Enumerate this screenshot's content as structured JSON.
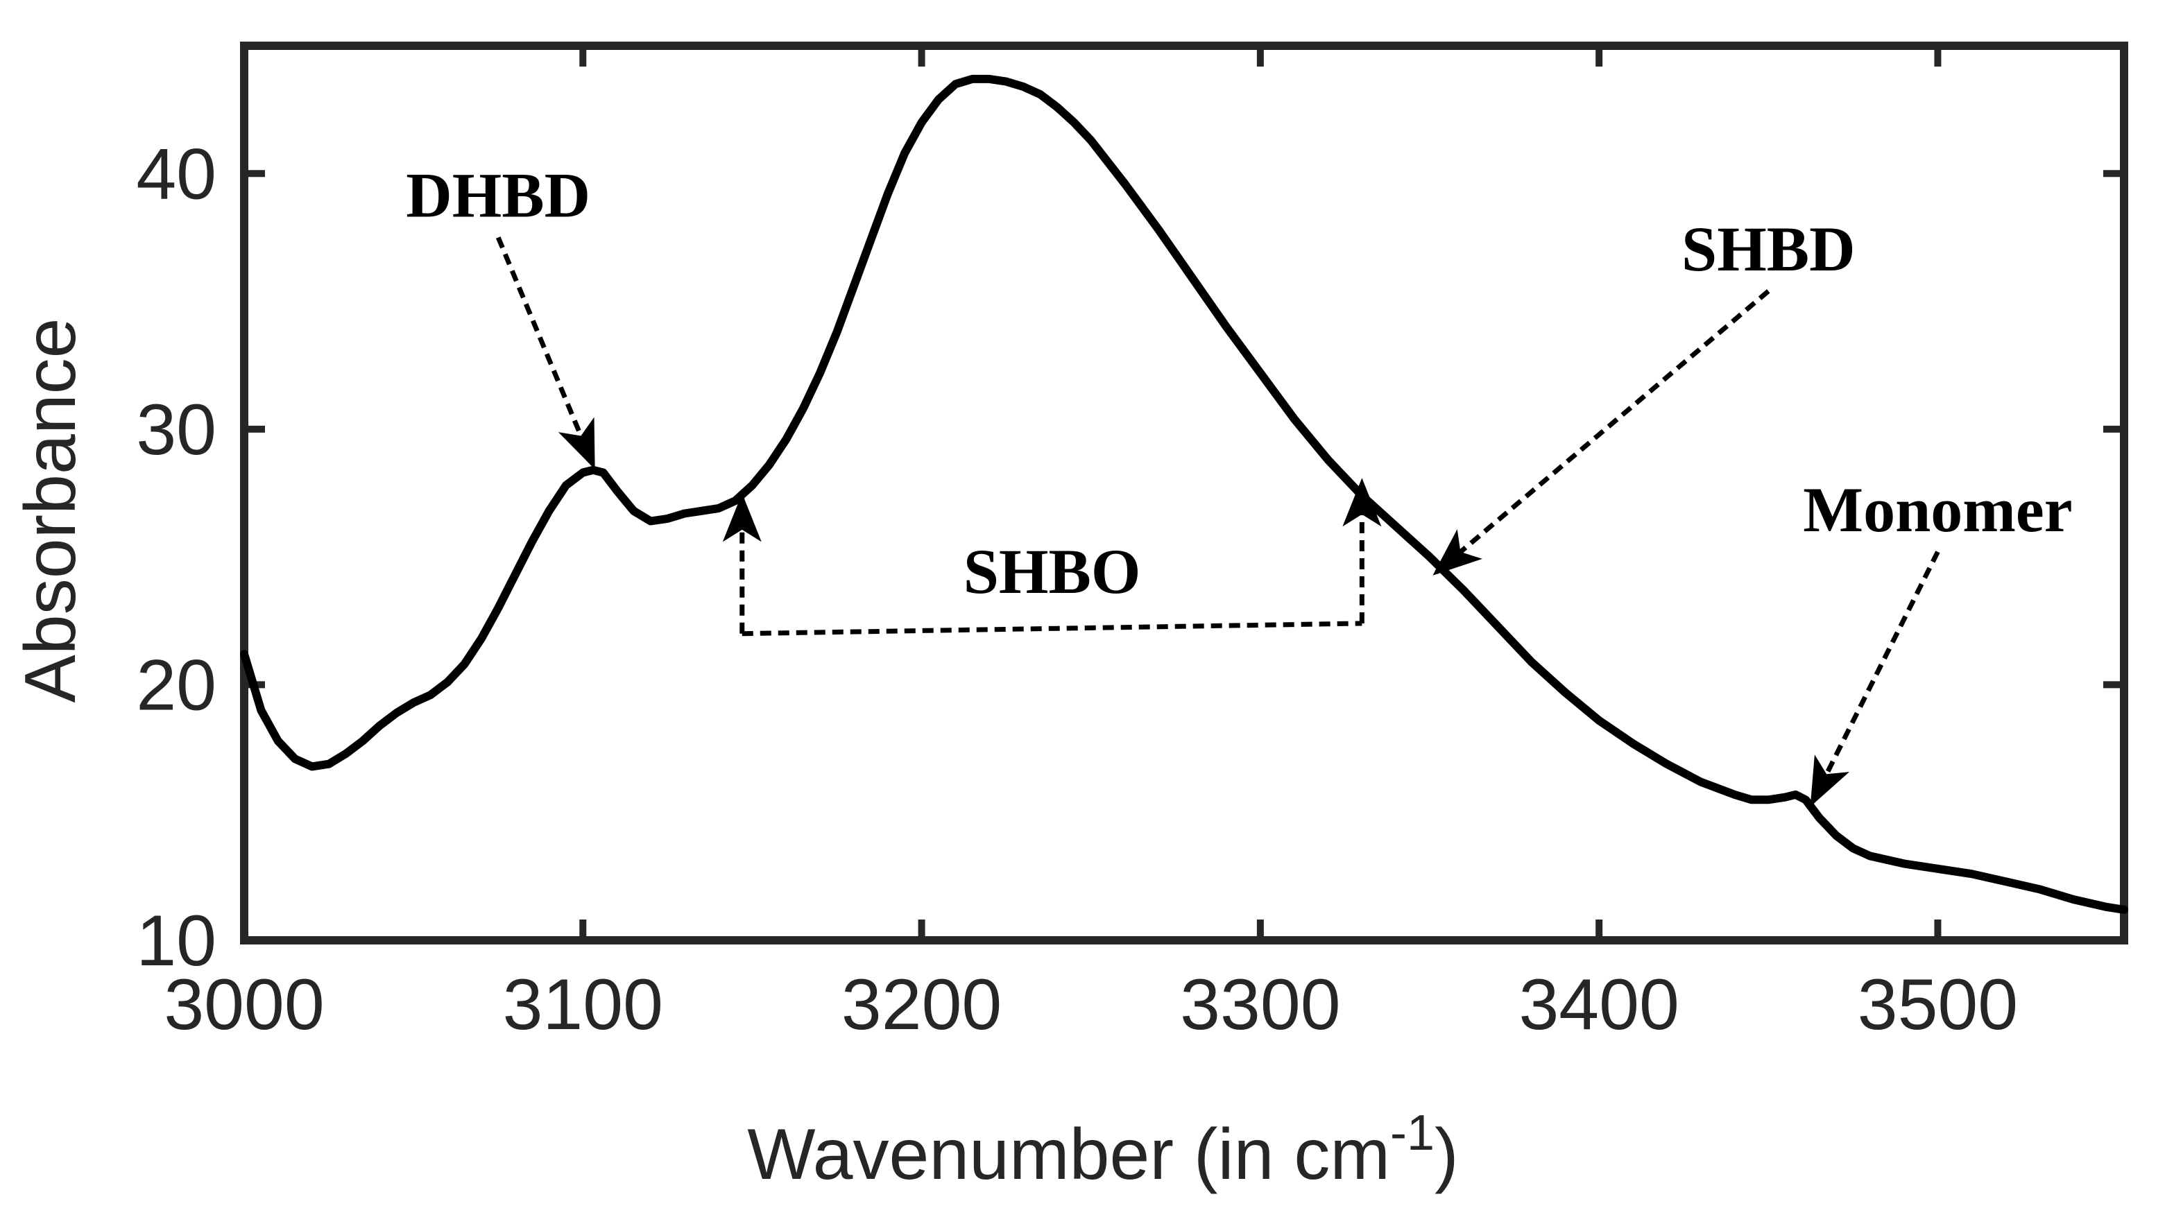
{
  "chart_data": {
    "type": "line",
    "title": "",
    "xlabel": "Wavenumber (in cm",
    "xlabel_sup": "-1",
    "xlabel_close": ")",
    "ylabel": "Absorbance",
    "xlim": [
      3000,
      3555
    ],
    "ylim": [
      10,
      45
    ],
    "x_ticks": [
      3000,
      3100,
      3200,
      3300,
      3400,
      3500
    ],
    "y_ticks": [
      10,
      20,
      30,
      40
    ],
    "grid": false,
    "colors": {
      "line": "#000000",
      "axis": "#262626",
      "text": "#262626"
    },
    "series": [
      {
        "name": "spectrum",
        "points": [
          [
            3000,
            21.2
          ],
          [
            3005,
            19.0
          ],
          [
            3010,
            17.8
          ],
          [
            3015,
            17.1
          ],
          [
            3020,
            16.8
          ],
          [
            3025,
            16.9
          ],
          [
            3030,
            17.3
          ],
          [
            3035,
            17.8
          ],
          [
            3040,
            18.4
          ],
          [
            3045,
            18.9
          ],
          [
            3050,
            19.3
          ],
          [
            3055,
            19.6
          ],
          [
            3060,
            20.1
          ],
          [
            3065,
            20.8
          ],
          [
            3070,
            21.8
          ],
          [
            3075,
            23.0
          ],
          [
            3080,
            24.3
          ],
          [
            3085,
            25.6
          ],
          [
            3090,
            26.8
          ],
          [
            3095,
            27.8
          ],
          [
            3100,
            28.3
          ],
          [
            3103,
            28.4
          ],
          [
            3106,
            28.3
          ],
          [
            3110,
            27.6
          ],
          [
            3115,
            26.8
          ],
          [
            3120,
            26.4
          ],
          [
            3125,
            26.5
          ],
          [
            3130,
            26.7
          ],
          [
            3135,
            26.8
          ],
          [
            3140,
            26.9
          ],
          [
            3145,
            27.2
          ],
          [
            3150,
            27.8
          ],
          [
            3155,
            28.6
          ],
          [
            3160,
            29.6
          ],
          [
            3165,
            30.8
          ],
          [
            3170,
            32.2
          ],
          [
            3175,
            33.8
          ],
          [
            3180,
            35.6
          ],
          [
            3185,
            37.4
          ],
          [
            3190,
            39.2
          ],
          [
            3195,
            40.8
          ],
          [
            3200,
            42.0
          ],
          [
            3205,
            42.9
          ],
          [
            3210,
            43.5
          ],
          [
            3215,
            43.7
          ],
          [
            3220,
            43.7
          ],
          [
            3225,
            43.6
          ],
          [
            3230,
            43.4
          ],
          [
            3235,
            43.1
          ],
          [
            3240,
            42.6
          ],
          [
            3245,
            42.0
          ],
          [
            3250,
            41.3
          ],
          [
            3260,
            39.6
          ],
          [
            3270,
            37.8
          ],
          [
            3280,
            35.9
          ],
          [
            3290,
            34.0
          ],
          [
            3300,
            32.2
          ],
          [
            3310,
            30.4
          ],
          [
            3320,
            28.8
          ],
          [
            3330,
            27.4
          ],
          [
            3340,
            26.2
          ],
          [
            3350,
            25.0
          ],
          [
            3360,
            23.7
          ],
          [
            3370,
            22.3
          ],
          [
            3380,
            20.9
          ],
          [
            3390,
            19.7
          ],
          [
            3400,
            18.6
          ],
          [
            3410,
            17.7
          ],
          [
            3420,
            16.9
          ],
          [
            3430,
            16.2
          ],
          [
            3440,
            15.7
          ],
          [
            3445,
            15.5
          ],
          [
            3450,
            15.5
          ],
          [
            3455,
            15.6
          ],
          [
            3458,
            15.7
          ],
          [
            3461,
            15.5
          ],
          [
            3465,
            14.8
          ],
          [
            3470,
            14.1
          ],
          [
            3475,
            13.6
          ],
          [
            3480,
            13.3
          ],
          [
            3490,
            13.0
          ],
          [
            3500,
            12.8
          ],
          [
            3510,
            12.6
          ],
          [
            3520,
            12.3
          ],
          [
            3530,
            12.0
          ],
          [
            3540,
            11.6
          ],
          [
            3550,
            11.3
          ],
          [
            3555,
            11.2
          ]
        ]
      }
    ],
    "annotations": [
      {
        "text": "DHBD",
        "arrow_from": [
          3075,
          37.5
        ],
        "arrow_to": [
          3103,
          28.6
        ]
      },
      {
        "text": "SHBD",
        "arrow_from": [
          3450,
          35.4
        ],
        "arrow_to": [
          3352,
          24.4
        ]
      },
      {
        "text": "Monomer",
        "arrow_from": [
          3500,
          25.2
        ],
        "arrow_to": [
          3463,
          15.4
        ]
      },
      {
        "text": "SHBO",
        "bracket_left": [
          3147,
          22.0
        ],
        "bracket_right": [
          3330,
          22.4
        ],
        "bracket_left_top": 27.3,
        "bracket_right_top": 27.9
      }
    ]
  }
}
